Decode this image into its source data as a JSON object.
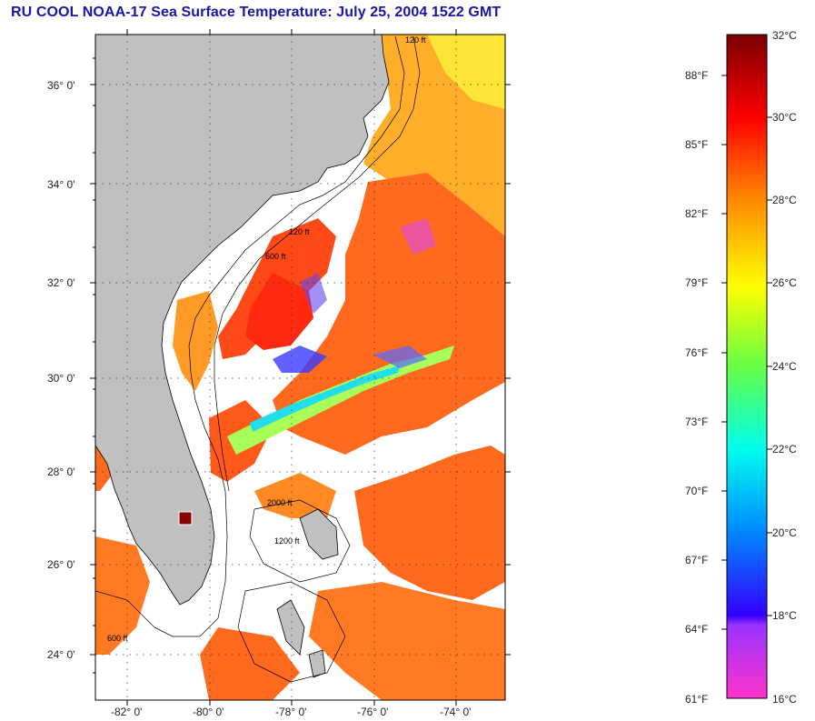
{
  "title": "RU COOL  NOAA-17  Sea Surface Temperature:  July 25, 2004 1522 GMT",
  "map": {
    "lat_labels": [
      "36° 0'",
      "34° 0'",
      "32° 0'",
      "30° 0'",
      "28° 0'",
      "26° 0'",
      "24° 0'"
    ],
    "lon_labels": [
      "-82° 0'",
      "-80° 0'",
      "-78° 0'",
      "-76° 0'",
      "-74° 0'"
    ],
    "contour_labels": [
      "120 ft",
      "600 ft",
      "2000 ft",
      "1200 ft"
    ],
    "colors": {
      "land": "#c0c0c0",
      "cloud": "#ffffff",
      "warm": "#ff5a1a",
      "hot": "#ff2a10",
      "border": "#000000"
    }
  },
  "colorbar": {
    "fahrenheit": [
      "88°F",
      "85°F",
      "82°F",
      "79°F",
      "76°F",
      "73°F",
      "70°F",
      "67°F",
      "64°F",
      "61°F"
    ],
    "celsius": [
      "32°C",
      "30°C",
      "28°C",
      "26°C",
      "24°C",
      "22°C",
      "20°C",
      "18°C",
      "16°C"
    ]
  }
}
